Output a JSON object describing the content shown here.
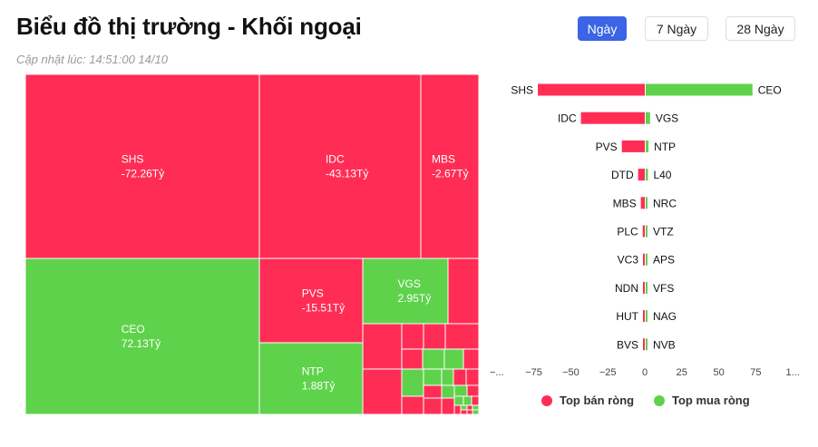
{
  "header": {
    "title": "Biểu đồ thị trường - Khối ngoại",
    "updated": "Cập nhật lúc: 14:51:00 14/10"
  },
  "ranges": [
    {
      "label": "Ngày",
      "active": true
    },
    {
      "label": "7 Ngày",
      "active": false
    },
    {
      "label": "28 Ngày",
      "active": false
    }
  ],
  "colors": {
    "sell": "#ff2d55",
    "buy": "#5fd24b"
  },
  "legend": {
    "sell": "Top bán ròng",
    "buy": "Top mua ròng"
  },
  "chart_data": [
    {
      "type": "treemap",
      "tiles": [
        {
          "code": "SHS",
          "value": "-72.26Tỷ",
          "side": "sell"
        },
        {
          "code": "IDC",
          "value": "-43.13Tỷ",
          "side": "sell"
        },
        {
          "code": "MBS",
          "value": "-2.67Tỷ",
          "side": "sell"
        },
        {
          "code": "CEO",
          "value": "72.13Tỷ",
          "side": "buy"
        },
        {
          "code": "PVS",
          "value": "-15.51Tỷ",
          "side": "sell"
        },
        {
          "code": "VGS",
          "value": "2.95Tỷ",
          "side": "buy"
        },
        {
          "code": "NTP",
          "value": "1.88Tỷ",
          "side": "buy"
        }
      ]
    },
    {
      "type": "bar",
      "orientation": "horizontal",
      "sell_categories": [
        "SHS",
        "IDC",
        "PVS",
        "DTD",
        "MBS",
        "PLC",
        "VC3",
        "NDN",
        "HUT",
        "BVS"
      ],
      "buy_categories": [
        "CEO",
        "VGS",
        "NTP",
        "L40",
        "NRC",
        "VTZ",
        "APS",
        "VFS",
        "NAG",
        "NVB"
      ],
      "series": [
        {
          "name": "Top bán ròng",
          "values": [
            -72.26,
            -43.13,
            -15.51,
            -4.5,
            -2.67,
            -1.4,
            -1.1,
            -0.8,
            -0.6,
            -0.5
          ]
        },
        {
          "name": "Top mua ròng",
          "values": [
            72.13,
            2.95,
            1.88,
            1.5,
            1.2,
            0.9,
            0.7,
            0.5,
            0.4,
            0.3
          ]
        }
      ],
      "xlim": [
        -100,
        100
      ],
      "x_ticks": [
        "−...",
        "−75",
        "−50",
        "−25",
        "0",
        "25",
        "50",
        "75",
        "1..."
      ],
      "legend_position": "bottom"
    }
  ]
}
